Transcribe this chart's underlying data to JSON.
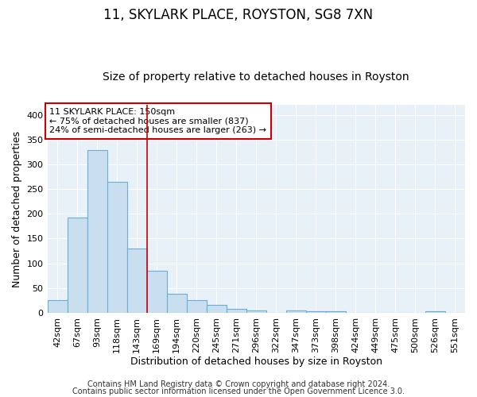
{
  "title": "11, SKYLARK PLACE, ROYSTON, SG8 7XN",
  "subtitle": "Size of property relative to detached houses in Royston",
  "xlabel": "Distribution of detached houses by size in Royston",
  "ylabel": "Number of detached properties",
  "categories": [
    "42sqm",
    "67sqm",
    "93sqm",
    "118sqm",
    "143sqm",
    "169sqm",
    "194sqm",
    "220sqm",
    "245sqm",
    "271sqm",
    "296sqm",
    "322sqm",
    "347sqm",
    "373sqm",
    "398sqm",
    "424sqm",
    "449sqm",
    "475sqm",
    "500sqm",
    "526sqm",
    "551sqm"
  ],
  "values": [
    25,
    193,
    328,
    265,
    130,
    85,
    38,
    25,
    16,
    8,
    4,
    0,
    4,
    3,
    3,
    0,
    0,
    0,
    0,
    3,
    0
  ],
  "bar_color": "#c9dff0",
  "bar_edge_color": "#6aaed6",
  "red_line_index": 4.5,
  "red_line_color": "#cc0000",
  "ylim": [
    0,
    420
  ],
  "yticks": [
    0,
    50,
    100,
    150,
    200,
    250,
    300,
    350,
    400
  ],
  "annotation_text": "11 SKYLARK PLACE: 150sqm\n← 75% of detached houses are smaller (837)\n24% of semi-detached houses are larger (263) →",
  "annotation_box_color": "#ffffff",
  "annotation_box_edge_color": "#cc0000",
  "footer_line1": "Contains HM Land Registry data © Crown copyright and database right 2024.",
  "footer_line2": "Contains public sector information licensed under the Open Government Licence 3.0.",
  "background_color": "#ffffff",
  "plot_bg_color": "#e8f0f8",
  "grid_color": "#ffffff",
  "title_fontsize": 12,
  "subtitle_fontsize": 10,
  "axis_label_fontsize": 9,
  "tick_fontsize": 8,
  "footer_fontsize": 7
}
